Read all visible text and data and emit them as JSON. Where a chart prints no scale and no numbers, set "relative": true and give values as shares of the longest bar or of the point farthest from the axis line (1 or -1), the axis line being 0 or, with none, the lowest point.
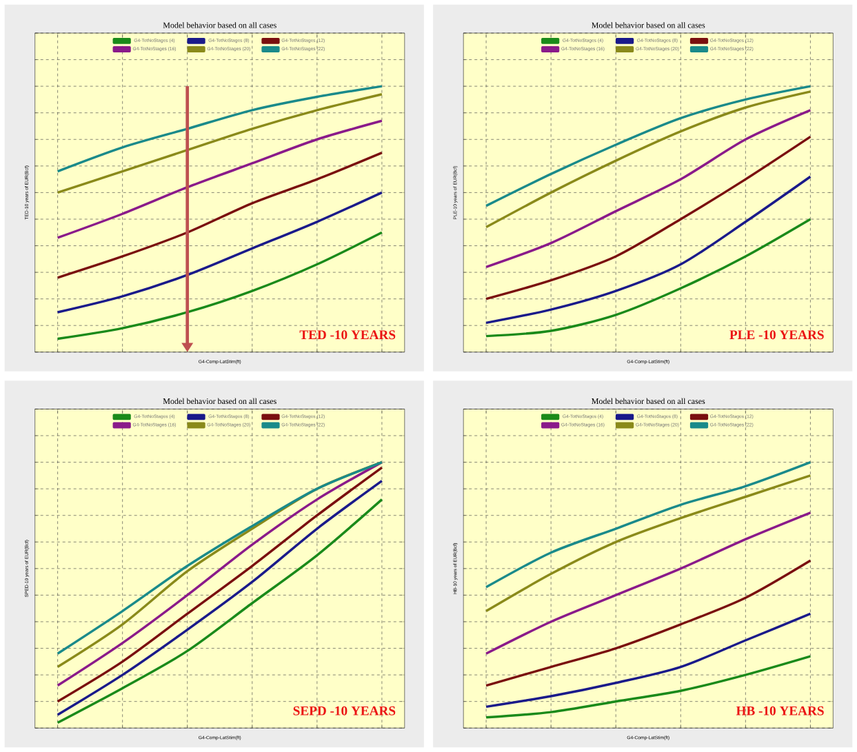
{
  "chart_data": [
    {
      "type": "line",
      "title": "Model behavior based on all cases",
      "xlabel": "G4-Comp-LatStim(ft)",
      "ylabel": "TED-10 years of  EUR(Bcf)",
      "categories": [
        null,
        null,
        null,
        null,
        null,
        null
      ],
      "relative": true,
      "grid": true,
      "legend": "top",
      "annotations": [
        "TED -10 YEARS"
      ],
      "series": [
        {
          "name": "G4-TotNoStages (4)",
          "color": "#1a8a1a",
          "values": [
            0.05,
            0.09,
            0.15,
            0.23,
            0.33,
            0.45
          ]
        },
        {
          "name": "G4-TotNoStages (8)",
          "color": "#1a1a8a",
          "values": [
            0.15,
            0.21,
            0.29,
            0.39,
            0.49,
            0.6
          ]
        },
        {
          "name": "G4-TotNoStages (12)",
          "color": "#7a0f0f",
          "values": [
            0.28,
            0.36,
            0.45,
            0.56,
            0.65,
            0.75
          ]
        },
        {
          "name": "G4-TotNoStages (16)",
          "color": "#8a1a8a",
          "values": [
            0.43,
            0.52,
            0.62,
            0.71,
            0.8,
            0.87
          ]
        },
        {
          "name": "G4-TotNoStages (20)",
          "color": "#8a8a1a",
          "values": [
            0.6,
            0.68,
            0.76,
            0.84,
            0.91,
            0.97
          ]
        },
        {
          "name": "G4-TotNoStages (22)",
          "color": "#1a8a8a",
          "values": [
            0.68,
            0.77,
            0.84,
            0.91,
            0.96,
            1.0
          ]
        }
      ]
    },
    {
      "type": "line",
      "title": "Model behavior based on all cases",
      "xlabel": "G4-Comp-LatStim(ft)",
      "ylabel": "PLE-10 years of  EUR(Bcf)",
      "categories": [
        null,
        null,
        null,
        null,
        null,
        null
      ],
      "relative": true,
      "grid": true,
      "legend": "top",
      "annotations": [
        "PLE -10 YEARS"
      ],
      "series": [
        {
          "name": "G4-TotNoStages (4)",
          "color": "#1a8a1a",
          "values": [
            0.06,
            0.08,
            0.14,
            0.24,
            0.36,
            0.5
          ]
        },
        {
          "name": "G4-TotNoStages (8)",
          "color": "#1a1a8a",
          "values": [
            0.11,
            0.16,
            0.23,
            0.33,
            0.49,
            0.66
          ]
        },
        {
          "name": "G4-TotNoStages (12)",
          "color": "#7a0f0f",
          "values": [
            0.2,
            0.27,
            0.36,
            0.5,
            0.65,
            0.81
          ]
        },
        {
          "name": "G4-TotNoStages (16)",
          "color": "#8a1a8a",
          "values": [
            0.32,
            0.41,
            0.53,
            0.65,
            0.8,
            0.91
          ]
        },
        {
          "name": "G4-TotNoStages (20)",
          "color": "#8a8a1a",
          "values": [
            0.47,
            0.6,
            0.72,
            0.83,
            0.92,
            0.98
          ]
        },
        {
          "name": "G4-TotNoStages (22)",
          "color": "#1a8a8a",
          "values": [
            0.55,
            0.67,
            0.78,
            0.88,
            0.95,
            1.0
          ]
        }
      ]
    },
    {
      "type": "line",
      "title": "Model behavior based on all cases",
      "xlabel": "G4-Comp-LatStim(ft)",
      "ylabel": "SPED-10 years  of  EUR(Bcf)",
      "categories": [
        null,
        null,
        null,
        null,
        null,
        null
      ],
      "relative": true,
      "grid": true,
      "legend": "top",
      "annotations": [
        "SEPD -10 YEARS"
      ],
      "series": [
        {
          "name": "G4-TotNoStages (4)",
          "color": "#1a8a1a",
          "values": [
            0.02,
            0.15,
            0.29,
            0.47,
            0.65,
            0.86
          ]
        },
        {
          "name": "G4-TotNoStages (8)",
          "color": "#1a1a8a",
          "values": [
            0.05,
            0.2,
            0.37,
            0.55,
            0.75,
            0.93
          ]
        },
        {
          "name": "G4-TotNoStages (12)",
          "color": "#7a0f0f",
          "values": [
            0.1,
            0.25,
            0.43,
            0.61,
            0.8,
            0.98
          ]
        },
        {
          "name": "G4-TotNoStages (16)",
          "color": "#8a1a8a",
          "values": [
            0.16,
            0.32,
            0.5,
            0.69,
            0.86,
            1.0
          ]
        },
        {
          "name": "G4-TotNoStages (20)",
          "color": "#8a8a1a",
          "values": [
            0.23,
            0.39,
            0.59,
            0.75,
            0.9,
            1.0
          ]
        },
        {
          "name": "G4-TotNoStages (22)",
          "color": "#1a8a8a",
          "values": [
            0.28,
            0.44,
            0.61,
            0.76,
            0.9,
            1.0
          ]
        }
      ]
    },
    {
      "type": "line",
      "title": "Model behavior based on all cases",
      "xlabel": "G4-Comp-LatStim(ft)",
      "ylabel": "HB-10 years of  EUR(Bcf)",
      "categories": [
        null,
        null,
        null,
        null,
        null,
        null
      ],
      "relative": true,
      "grid": true,
      "legend": "top",
      "annotations": [
        "HB -10 YEARS"
      ],
      "series": [
        {
          "name": "G4-TotNoStages (4)",
          "color": "#1a8a1a",
          "values": [
            0.04,
            0.06,
            0.1,
            0.14,
            0.2,
            0.27
          ]
        },
        {
          "name": "G4-TotNoStages (8)",
          "color": "#1a1a8a",
          "values": [
            0.08,
            0.12,
            0.17,
            0.23,
            0.33,
            0.43
          ]
        },
        {
          "name": "G4-TotNoStages (12)",
          "color": "#7a0f0f",
          "values": [
            0.16,
            0.23,
            0.3,
            0.39,
            0.49,
            0.63
          ]
        },
        {
          "name": "G4-TotNoStages (16)",
          "color": "#8a1a8a",
          "values": [
            0.28,
            0.4,
            0.5,
            0.6,
            0.71,
            0.81
          ]
        },
        {
          "name": "G4-TotNoStages (20)",
          "color": "#8a8a1a",
          "values": [
            0.44,
            0.58,
            0.7,
            0.79,
            0.87,
            0.95
          ]
        },
        {
          "name": "G4-TotNoStages (22)",
          "color": "#1a8a8a",
          "values": [
            0.53,
            0.66,
            0.75,
            0.84,
            0.91,
            1.0
          ]
        }
      ]
    }
  ]
}
